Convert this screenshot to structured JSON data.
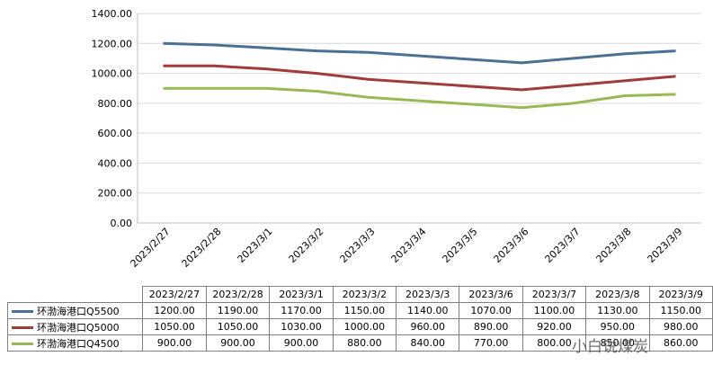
{
  "chart_data": {
    "type": "line",
    "title": "",
    "xlabel": "",
    "ylabel": "",
    "ylim": [
      0,
      1400
    ],
    "yticks": [
      "0.00",
      "200.00",
      "400.00",
      "600.00",
      "800.00",
      "1000.00",
      "1200.00",
      "1400.00"
    ],
    "axis_categories": [
      "2023/2/27",
      "2023/2/28",
      "2023/3/1",
      "2023/3/2",
      "2023/3/3",
      "2023/3/4",
      "2023/3/5",
      "2023/3/6",
      "2023/3/7",
      "2023/3/8",
      "2023/3/9"
    ],
    "table_categories": [
      "2023/2/27",
      "2023/2/28",
      "2023/3/1",
      "2023/3/2",
      "2023/3/3",
      "2023/3/6",
      "2023/3/7",
      "2023/3/8",
      "2023/3/9"
    ],
    "grid": true,
    "legend": "data-table-bottom",
    "series": [
      {
        "name": "环渤海港口Q5500",
        "color": "#4a7194",
        "values": [
          1200,
          1190,
          1170,
          1150,
          1140,
          1070,
          1100,
          1130,
          1150
        ],
        "labels": [
          "1200.00",
          "1190.00",
          "1170.00",
          "1150.00",
          "1140.00",
          "1070.00",
          "1100.00",
          "1130.00",
          "1150.00"
        ]
      },
      {
        "name": "环渤海港口Q5000",
        "color": "#a03c3a",
        "values": [
          1050,
          1050,
          1030,
          1000,
          960,
          890,
          920,
          950,
          980
        ],
        "labels": [
          "1050.00",
          "1050.00",
          "1030.00",
          "1000.00",
          "960.00",
          "890.00",
          "920.00",
          "950.00",
          "980.00"
        ]
      },
      {
        "name": "环渤海港口Q4500",
        "color": "#98b954",
        "values": [
          900,
          900,
          900,
          880,
          840,
          770,
          800,
          850,
          860
        ],
        "labels": [
          "900.00",
          "900.00",
          "900.00",
          "880.00",
          "840.00",
          "770.00",
          "800.00",
          "850.00",
          "860.00"
        ]
      }
    ]
  },
  "watermark": "小白说煤炭"
}
